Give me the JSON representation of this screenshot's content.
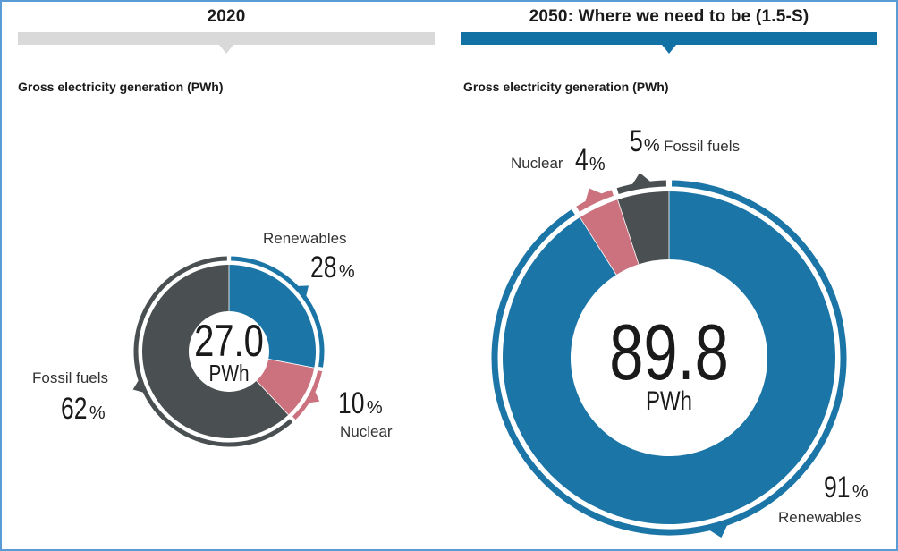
{
  "colors": {
    "renewables": "#1b75a6",
    "nuclear": "#cb727e",
    "fossil": "#4a5052",
    "left_bar": "#d9d9d9",
    "right_bar": "#1271a4",
    "frame": "#5b9bd5"
  },
  "chart_data": [
    {
      "type": "pie",
      "variant": "donut",
      "panel_title": "2020",
      "title": "Gross electricity generation (PWh)",
      "center_value": "27.0",
      "center_unit": "PWh",
      "slices": [
        {
          "name": "Renewables",
          "value": 28,
          "label": "28",
          "unit": "%"
        },
        {
          "name": "Nuclear",
          "value": 10,
          "label": "10",
          "unit": "%"
        },
        {
          "name": "Fossil fuels",
          "value": 62,
          "label": "62",
          "unit": "%"
        }
      ]
    },
    {
      "type": "pie",
      "variant": "donut",
      "panel_title": "2050: Where we need to be (1.5-S)",
      "title": "Gross electricity generation (PWh)",
      "center_value": "89.8",
      "center_unit": "PWh",
      "slices": [
        {
          "name": "Renewables",
          "value": 91,
          "label": "91",
          "unit": "%"
        },
        {
          "name": "Nuclear",
          "value": 4,
          "label": "4",
          "unit": "%"
        },
        {
          "name": "Fossil fuels",
          "value": 5,
          "label": "5",
          "unit": "%"
        }
      ]
    }
  ]
}
